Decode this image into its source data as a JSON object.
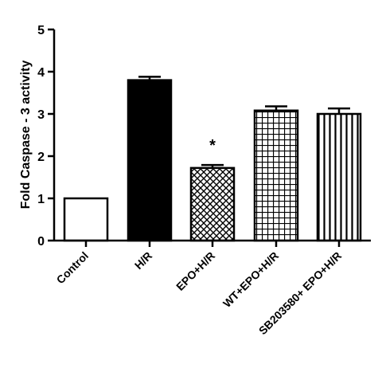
{
  "chart_data": {
    "type": "bar",
    "title": "",
    "xlabel": "",
    "ylabel": "Fold Caspase - 3 activity",
    "ylim": [
      0,
      5
    ],
    "yticks": [
      0,
      1,
      2,
      3,
      4,
      5
    ],
    "grid": false,
    "categories": [
      "Control",
      "H/R",
      "EPO+H/R",
      "WT+EPO+H/R",
      "SB203580+ EPO+H/R"
    ],
    "values": [
      1.0,
      3.8,
      1.72,
      3.08,
      3.0
    ],
    "errors": [
      0.0,
      0.08,
      0.07,
      0.1,
      0.13
    ],
    "fills": [
      "white",
      "solid",
      "crosshatch",
      "grid",
      "vertical-lines"
    ],
    "annotations": [
      {
        "category": "EPO+H/R",
        "text": "*"
      }
    ]
  }
}
